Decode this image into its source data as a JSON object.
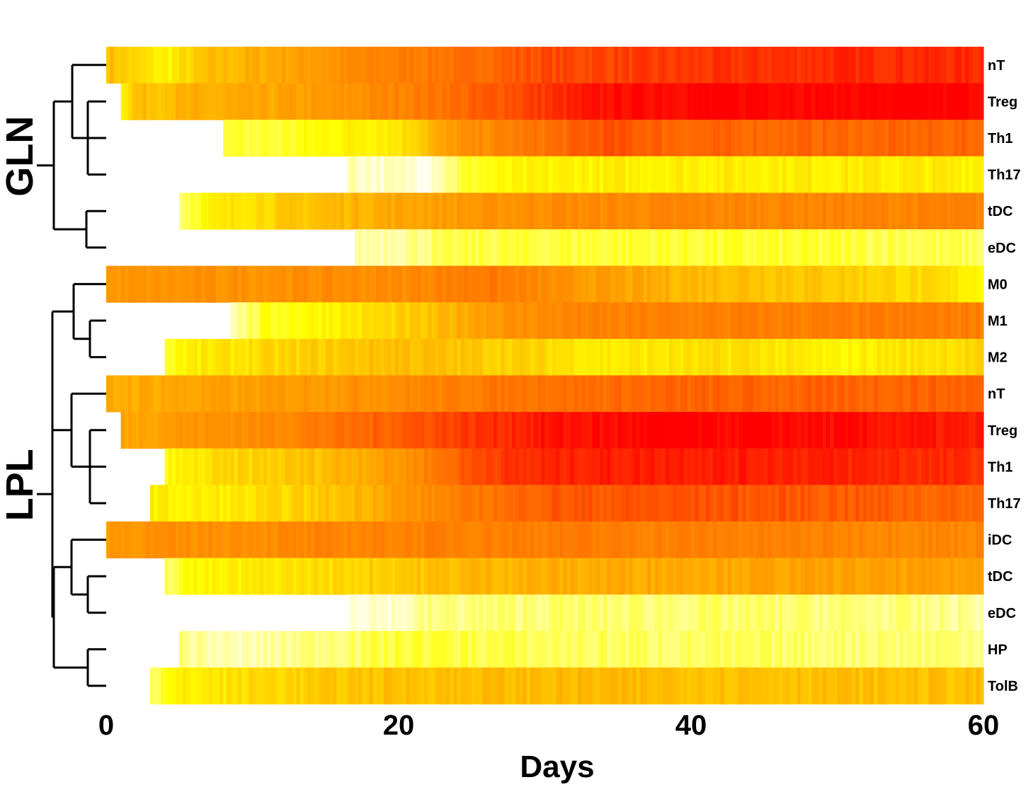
{
  "chart_data": {
    "type": "heatmap",
    "xlabel": "Days",
    "xlim": [
      0,
      60
    ],
    "xticks": [
      0,
      20,
      40,
      60
    ],
    "colormap": [
      "#FFFFFF",
      "#FFFF00",
      "#FFA500",
      "#FF6600",
      "#FF0000"
    ],
    "groups": [
      {
        "name": "GLN",
        "rows": [
          {
            "label": "nT",
            "start": 0,
            "stops": [
              [
                0,
                0.45
              ],
              [
                2,
                0.35
              ],
              [
                4,
                0.28
              ],
              [
                7,
                0.42
              ],
              [
                12,
                0.5
              ],
              [
                18,
                0.62
              ],
              [
                25,
                0.72
              ],
              [
                30,
                0.82
              ],
              [
                40,
                0.86
              ],
              [
                50,
                0.9
              ],
              [
                60,
                0.9
              ]
            ]
          },
          {
            "label": "Treg",
            "start": 1,
            "stops": [
              [
                1,
                0.3
              ],
              [
                2,
                0.42
              ],
              [
                5,
                0.45
              ],
              [
                10,
                0.48
              ],
              [
                16,
                0.55
              ],
              [
                22,
                0.68
              ],
              [
                28,
                0.82
              ],
              [
                35,
                0.98
              ],
              [
                45,
                1.0
              ],
              [
                60,
                1.0
              ]
            ]
          },
          {
            "label": "Th1",
            "start": 8,
            "stops": [
              [
                8,
                0.18
              ],
              [
                12,
                0.2
              ],
              [
                16,
                0.28
              ],
              [
                20,
                0.32
              ],
              [
                24,
                0.55
              ],
              [
                30,
                0.7
              ],
              [
                34,
                0.8
              ],
              [
                40,
                0.74
              ],
              [
                50,
                0.74
              ],
              [
                60,
                0.74
              ]
            ]
          },
          {
            "label": "Th17",
            "start": 16.5,
            "stops": [
              [
                16.5,
                0.08
              ],
              [
                19,
                0.05
              ],
              [
                22,
                0.05
              ],
              [
                25,
                0.22
              ],
              [
                30,
                0.28
              ],
              [
                40,
                0.3
              ],
              [
                50,
                0.3
              ],
              [
                60,
                0.3
              ]
            ]
          },
          {
            "label": "tDC",
            "start": 5,
            "stops": [
              [
                5,
                0.15
              ],
              [
                6.5,
                0.25
              ],
              [
                9,
                0.33
              ],
              [
                14,
                0.42
              ],
              [
                20,
                0.5
              ],
              [
                30,
                0.6
              ],
              [
                40,
                0.62
              ],
              [
                50,
                0.63
              ],
              [
                60,
                0.63
              ]
            ]
          },
          {
            "label": "eDC",
            "start": 17,
            "stops": [
              [
                17,
                0.08
              ],
              [
                21,
                0.12
              ],
              [
                25,
                0.18
              ],
              [
                35,
                0.2
              ],
              [
                45,
                0.2
              ],
              [
                55,
                0.18
              ],
              [
                60,
                0.16
              ]
            ]
          }
        ]
      },
      {
        "name": "LPL",
        "rows": [
          {
            "label": "M0",
            "start": 0,
            "stops": [
              [
                0,
                0.55
              ],
              [
                10,
                0.58
              ],
              [
                20,
                0.6
              ],
              [
                26,
                0.68
              ],
              [
                32,
                0.55
              ],
              [
                40,
                0.45
              ],
              [
                50,
                0.4
              ],
              [
                57,
                0.33
              ],
              [
                60,
                0.28
              ]
            ]
          },
          {
            "label": "M1",
            "start": 8.5,
            "stops": [
              [
                8.5,
                0.08
              ],
              [
                11,
                0.22
              ],
              [
                16,
                0.3
              ],
              [
                22,
                0.4
              ],
              [
                26,
                0.55
              ],
              [
                32,
                0.63
              ],
              [
                45,
                0.65
              ],
              [
                60,
                0.66
              ]
            ]
          },
          {
            "label": "M2",
            "start": 4,
            "stops": [
              [
                4,
                0.18
              ],
              [
                5,
                0.28
              ],
              [
                12,
                0.36
              ],
              [
                20,
                0.44
              ],
              [
                28,
                0.38
              ],
              [
                34,
                0.3
              ],
              [
                44,
                0.34
              ],
              [
                50,
                0.26
              ],
              [
                54,
                0.32
              ],
              [
                60,
                0.36
              ]
            ]
          },
          {
            "label": "nT",
            "start": 0,
            "stops": [
              [
                0,
                0.48
              ],
              [
                10,
                0.52
              ],
              [
                20,
                0.6
              ],
              [
                28,
                0.7
              ],
              [
                40,
                0.75
              ],
              [
                50,
                0.75
              ],
              [
                60,
                0.76
              ]
            ]
          },
          {
            "label": "Treg",
            "start": 1,
            "stops": [
              [
                1,
                0.5
              ],
              [
                5,
                0.55
              ],
              [
                12,
                0.62
              ],
              [
                20,
                0.78
              ],
              [
                30,
                0.95
              ],
              [
                40,
                1.0
              ],
              [
                50,
                0.97
              ],
              [
                60,
                0.92
              ]
            ]
          },
          {
            "label": "Th1",
            "start": 4,
            "stops": [
              [
                4,
                0.25
              ],
              [
                8,
                0.35
              ],
              [
                14,
                0.42
              ],
              [
                20,
                0.55
              ],
              [
                26,
                0.85
              ],
              [
                32,
                0.92
              ],
              [
                40,
                0.94
              ],
              [
                50,
                0.92
              ],
              [
                60,
                0.88
              ]
            ]
          },
          {
            "label": "Th17",
            "start": 3,
            "stops": [
              [
                3,
                0.3
              ],
              [
                6,
                0.28
              ],
              [
                10,
                0.32
              ],
              [
                16,
                0.42
              ],
              [
                22,
                0.6
              ],
              [
                30,
                0.78
              ],
              [
                40,
                0.8
              ],
              [
                50,
                0.78
              ],
              [
                60,
                0.74
              ]
            ]
          },
          {
            "label": "iDC",
            "start": 0,
            "stops": [
              [
                0,
                0.56
              ],
              [
                10,
                0.6
              ],
              [
                20,
                0.64
              ],
              [
                30,
                0.66
              ],
              [
                45,
                0.64
              ],
              [
                60,
                0.62
              ]
            ]
          },
          {
            "label": "tDC",
            "start": 4,
            "stops": [
              [
                4,
                0.15
              ],
              [
                5.5,
                0.25
              ],
              [
                10,
                0.3
              ],
              [
                18,
                0.38
              ],
              [
                26,
                0.46
              ],
              [
                40,
                0.5
              ],
              [
                60,
                0.52
              ]
            ]
          },
          {
            "label": "eDC",
            "start": 16.5,
            "stops": [
              [
                16.5,
                0.06
              ],
              [
                20,
                0.05
              ],
              [
                22,
                0.12
              ],
              [
                30,
                0.14
              ],
              [
                45,
                0.14
              ],
              [
                55,
                0.12
              ],
              [
                60,
                0.1
              ]
            ]
          },
          {
            "label": "HP",
            "start": 5,
            "stops": [
              [
                5,
                0.12
              ],
              [
                9,
                0.06
              ],
              [
                13,
                0.12
              ],
              [
                21,
                0.2
              ],
              [
                30,
                0.16
              ],
              [
                45,
                0.15
              ],
              [
                60,
                0.14
              ]
            ]
          },
          {
            "label": "TolB",
            "start": 3,
            "stops": [
              [
                3,
                0.15
              ],
              [
                5,
                0.28
              ],
              [
                10,
                0.35
              ],
              [
                18,
                0.42
              ],
              [
                30,
                0.44
              ],
              [
                45,
                0.43
              ],
              [
                60,
                0.42
              ]
            ]
          }
        ]
      }
    ]
  }
}
